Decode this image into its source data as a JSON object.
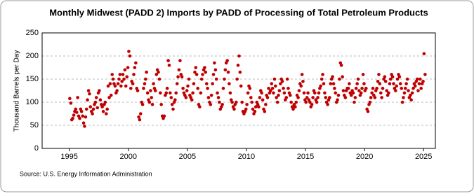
{
  "chart_data": {
    "type": "scatter",
    "title": "Monthly Midwest (PADD 2) Imports by PADD of Processing of Total Petroleum Products",
    "y_label": "Thousand Barrels per Day",
    "source": "Source: U.S. Energy Information Administration",
    "color": "#c00000",
    "grid": true,
    "xlim": [
      1992.7,
      2026
    ],
    "ylim": [
      0,
      250
    ],
    "xticks": [
      1995,
      2000,
      2005,
      2010,
      2015,
      2020,
      2025
    ],
    "yticks": [
      0,
      50,
      100,
      150,
      200,
      250
    ],
    "x": [
      1995.04,
      1995.13,
      1995.21,
      1995.29,
      1995.38,
      1995.46,
      1995.54,
      1995.63,
      1995.71,
      1995.79,
      1995.88,
      1995.96,
      1996.04,
      1996.13,
      1996.21,
      1996.29,
      1996.38,
      1996.46,
      1996.54,
      1996.63,
      1996.71,
      1996.79,
      1996.88,
      1996.96,
      1997.04,
      1997.13,
      1997.21,
      1997.29,
      1997.38,
      1997.46,
      1997.54,
      1997.63,
      1997.71,
      1997.79,
      1997.88,
      1997.96,
      1998.04,
      1998.13,
      1998.21,
      1998.29,
      1998.38,
      1998.46,
      1998.54,
      1998.63,
      1998.71,
      1998.79,
      1998.88,
      1998.96,
      1999.04,
      1999.13,
      1999.21,
      1999.29,
      1999.38,
      1999.46,
      1999.54,
      1999.63,
      1999.71,
      1999.79,
      1999.88,
      1999.96,
      2000.04,
      2000.13,
      2000.21,
      2000.29,
      2000.38,
      2000.46,
      2000.54,
      2000.63,
      2000.71,
      2000.79,
      2000.88,
      2000.96,
      2001.04,
      2001.13,
      2001.21,
      2001.29,
      2001.38,
      2001.46,
      2001.54,
      2001.63,
      2001.71,
      2001.79,
      2001.88,
      2001.96,
      2002.04,
      2002.13,
      2002.21,
      2002.29,
      2002.38,
      2002.46,
      2002.54,
      2002.63,
      2002.71,
      2002.79,
      2002.88,
      2002.96,
      2003.04,
      2003.13,
      2003.21,
      2003.29,
      2003.38,
      2003.46,
      2003.54,
      2003.63,
      2003.71,
      2003.79,
      2003.88,
      2003.96,
      2004.04,
      2004.13,
      2004.21,
      2004.29,
      2004.38,
      2004.46,
      2004.54,
      2004.63,
      2004.71,
      2004.79,
      2004.88,
      2004.96,
      2005.04,
      2005.13,
      2005.21,
      2005.29,
      2005.38,
      2005.46,
      2005.54,
      2005.63,
      2005.71,
      2005.79,
      2005.88,
      2005.96,
      2006.04,
      2006.13,
      2006.21,
      2006.29,
      2006.38,
      2006.46,
      2006.54,
      2006.63,
      2006.71,
      2006.79,
      2006.88,
      2006.96,
      2007.04,
      2007.13,
      2007.21,
      2007.29,
      2007.38,
      2007.46,
      2007.54,
      2007.63,
      2007.71,
      2007.79,
      2007.88,
      2007.96,
      2008.04,
      2008.13,
      2008.21,
      2008.29,
      2008.38,
      2008.46,
      2008.54,
      2008.63,
      2008.71,
      2008.79,
      2008.88,
      2008.96,
      2009.04,
      2009.13,
      2009.21,
      2009.29,
      2009.38,
      2009.46,
      2009.54,
      2009.63,
      2009.71,
      2009.79,
      2009.88,
      2009.96,
      2010.04,
      2010.13,
      2010.21,
      2010.29,
      2010.38,
      2010.46,
      2010.54,
      2010.63,
      2010.71,
      2010.79,
      2010.88,
      2010.96,
      2011.04,
      2011.13,
      2011.21,
      2011.29,
      2011.38,
      2011.46,
      2011.54,
      2011.63,
      2011.71,
      2011.79,
      2011.88,
      2011.96,
      2012.04,
      2012.13,
      2012.21,
      2012.29,
      2012.38,
      2012.46,
      2012.54,
      2012.63,
      2012.71,
      2012.79,
      2012.88,
      2012.96,
      2013.04,
      2013.13,
      2013.21,
      2013.29,
      2013.38,
      2013.46,
      2013.54,
      2013.63,
      2013.71,
      2013.79,
      2013.88,
      2013.96,
      2014.04,
      2014.13,
      2014.21,
      2014.29,
      2014.38,
      2014.46,
      2014.54,
      2014.63,
      2014.71,
      2014.79,
      2014.88,
      2014.96,
      2015.04,
      2015.13,
      2015.21,
      2015.29,
      2015.38,
      2015.46,
      2015.54,
      2015.63,
      2015.71,
      2015.79,
      2015.88,
      2015.96,
      2016.04,
      2016.13,
      2016.21,
      2016.29,
      2016.38,
      2016.46,
      2016.54,
      2016.63,
      2016.71,
      2016.79,
      2016.88,
      2016.96,
      2017.04,
      2017.13,
      2017.21,
      2017.29,
      2017.38,
      2017.46,
      2017.54,
      2017.63,
      2017.71,
      2017.79,
      2017.88,
      2017.96,
      2018.04,
      2018.13,
      2018.21,
      2018.29,
      2018.38,
      2018.46,
      2018.54,
      2018.63,
      2018.71,
      2018.79,
      2018.88,
      2018.96,
      2019.04,
      2019.13,
      2019.21,
      2019.29,
      2019.38,
      2019.46,
      2019.54,
      2019.63,
      2019.71,
      2019.79,
      2019.88,
      2019.96,
      2020.04,
      2020.13,
      2020.21,
      2020.29,
      2020.38,
      2020.46,
      2020.54,
      2020.63,
      2020.71,
      2020.79,
      2020.88,
      2020.96,
      2021.04,
      2021.13,
      2021.21,
      2021.29,
      2021.38,
      2021.46,
      2021.54,
      2021.63,
      2021.71,
      2021.79,
      2021.88,
      2021.96,
      2022.04,
      2022.13,
      2022.21,
      2022.29,
      2022.38,
      2022.46,
      2022.54,
      2022.63,
      2022.71,
      2022.79,
      2022.88,
      2022.96,
      2023.04,
      2023.13,
      2023.21,
      2023.29,
      2023.38,
      2023.46,
      2023.54,
      2023.63,
      2023.71,
      2023.79,
      2023.88,
      2023.96,
      2024.04,
      2024.13,
      2024.21,
      2024.29,
      2024.38,
      2024.46,
      2024.54,
      2024.63,
      2024.71,
      2024.79,
      2024.88,
      2024.96,
      2025.04,
      2025.13
    ],
    "values": [
      108,
      98,
      62,
      65,
      72,
      80,
      85,
      78,
      110,
      70,
      65,
      85,
      80,
      70,
      55,
      48,
      68,
      85,
      105,
      125,
      118,
      90,
      80,
      75,
      85,
      95,
      100,
      110,
      88,
      120,
      125,
      105,
      95,
      90,
      80,
      95,
      100,
      75,
      85,
      135,
      110,
      140,
      115,
      160,
      150,
      140,
      135,
      120,
      125,
      140,
      150,
      160,
      135,
      145,
      160,
      150,
      170,
      135,
      155,
      175,
      210,
      200,
      130,
      145,
      140,
      160,
      175,
      185,
      130,
      125,
      68,
      62,
      75,
      100,
      95,
      130,
      140,
      150,
      165,
      120,
      105,
      100,
      125,
      110,
      95,
      140,
      130,
      125,
      160,
      170,
      165,
      150,
      120,
      95,
      70,
      65,
      70,
      115,
      120,
      130,
      190,
      180,
      120,
      110,
      95,
      85,
      100,
      105,
      120,
      140,
      155,
      170,
      190,
      160,
      155,
      130,
      120,
      115,
      110,
      125,
      135,
      150,
      115,
      110,
      105,
      120,
      140,
      165,
      175,
      160,
      130,
      95,
      90,
      120,
      150,
      160,
      170,
      175,
      165,
      140,
      130,
      110,
      100,
      95,
      115,
      140,
      160,
      185,
      170,
      150,
      120,
      110,
      100,
      85,
      90,
      95,
      130,
      150,
      170,
      185,
      190,
      165,
      140,
      120,
      105,
      100,
      90,
      85,
      95,
      100,
      150,
      180,
      200,
      165,
      135,
      100,
      80,
      75,
      80,
      85,
      95,
      120,
      135,
      130,
      110,
      100,
      85,
      75,
      80,
      90,
      100,
      95,
      90,
      110,
      125,
      120,
      105,
      85,
      80,
      95,
      115,
      110,
      130,
      120,
      125,
      140,
      130,
      120,
      150,
      135,
      110,
      100,
      115,
      125,
      140,
      150,
      145,
      130,
      120,
      105,
      110,
      150,
      130,
      120,
      115,
      100,
      90,
      85,
      95,
      90,
      100,
      115,
      110,
      125,
      140,
      135,
      160,
      145,
      120,
      105,
      100,
      110,
      120,
      105,
      100,
      90,
      95,
      110,
      125,
      120,
      105,
      100,
      110,
      120,
      130,
      135,
      150,
      160,
      140,
      120,
      110,
      100,
      95,
      105,
      110,
      140,
      150,
      155,
      140,
      130,
      120,
      100,
      105,
      115,
      150,
      185,
      180,
      155,
      125,
      115,
      110,
      125,
      130,
      130,
      140,
      120,
      115,
      125,
      120,
      100,
      110,
      130,
      140,
      150,
      125,
      115,
      120,
      130,
      160,
      140,
      125,
      130,
      85,
      80,
      95,
      100,
      110,
      120,
      130,
      115,
      110,
      125,
      130,
      145,
      160,
      140,
      120,
      110,
      130,
      150,
      155,
      145,
      125,
      115,
      120,
      140,
      150,
      160,
      155,
      140,
      130,
      125,
      135,
      150,
      160,
      155,
      140,
      130,
      100,
      110,
      120,
      130,
      140,
      150,
      125,
      110,
      115,
      105,
      120,
      130,
      140,
      135,
      145,
      150,
      125,
      140,
      150,
      130,
      140,
      145,
      205,
      160
    ]
  }
}
